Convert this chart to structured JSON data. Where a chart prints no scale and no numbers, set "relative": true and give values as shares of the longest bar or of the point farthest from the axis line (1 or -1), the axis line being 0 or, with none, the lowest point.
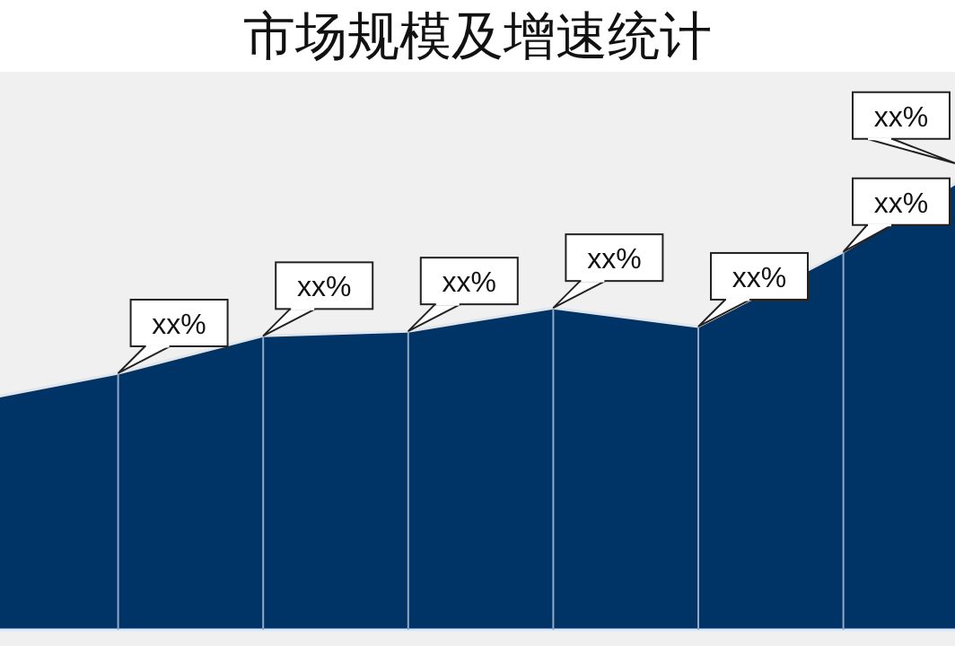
{
  "chart_data": {
    "type": "area",
    "title": "市场规模及增速统计",
    "relative": true,
    "categories": [
      null,
      null,
      null,
      null,
      null,
      null,
      null,
      null
    ],
    "series": [
      {
        "color": "#003366",
        "values": [
          0.49,
          0.55,
          0.63,
          0.64,
          0.69,
          0.65,
          0.81,
          1
        ]
      }
    ],
    "annotations": [
      "xx%",
      "xx%",
      "xx%",
      "xx%",
      "xx%",
      "xx%",
      "xx%"
    ]
  }
}
